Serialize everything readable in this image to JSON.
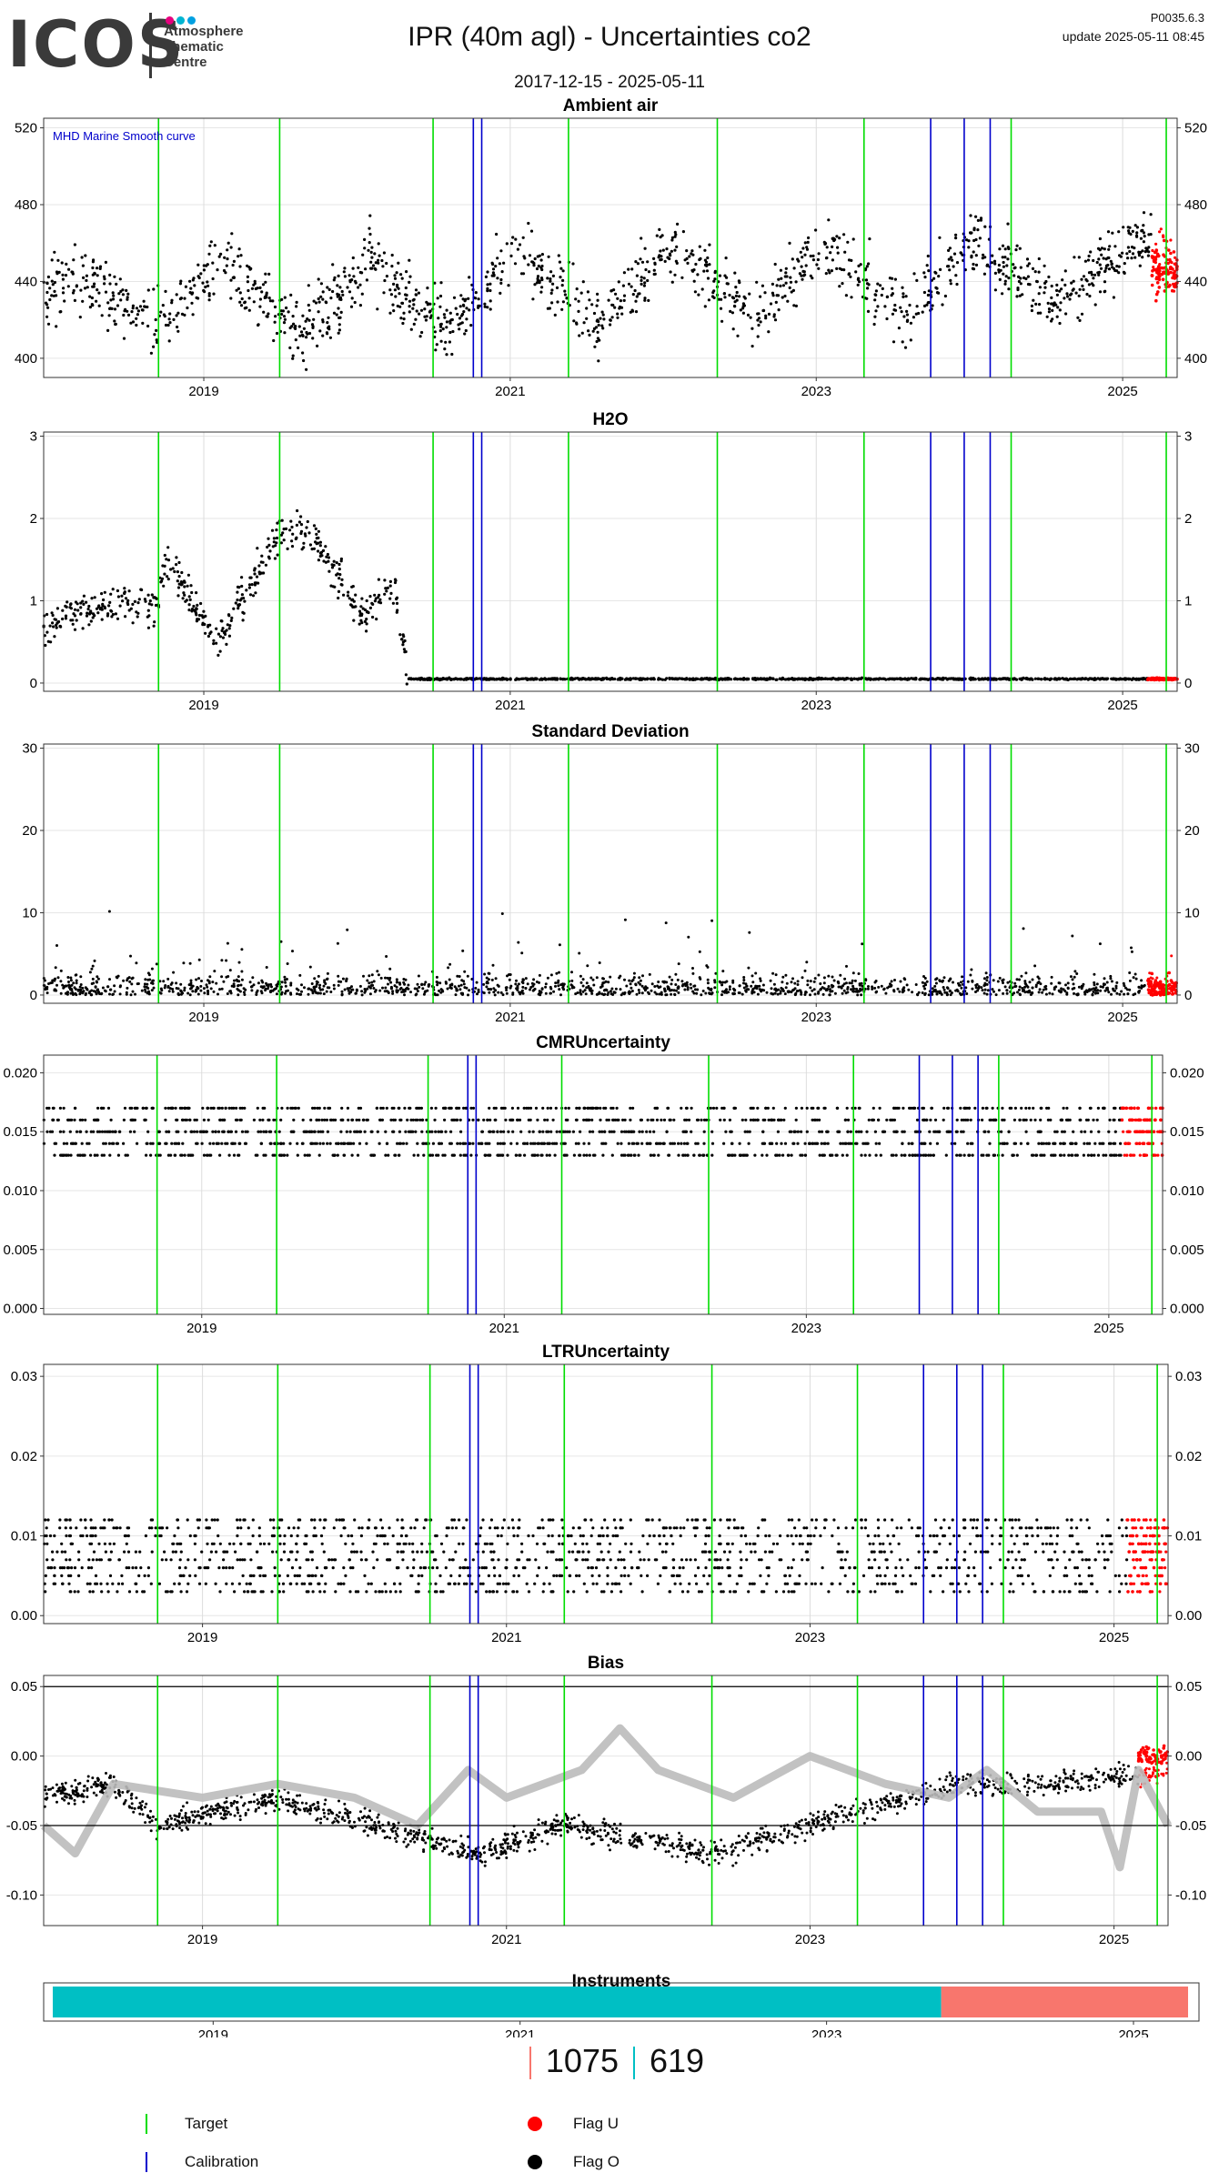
{
  "header": {
    "logo_text": "ICOS",
    "logo_sub": [
      "Atmosphere",
      "Thematic",
      "Centre"
    ],
    "logo_dot_colors": [
      "#e6007e",
      "#00b5d1",
      "#00a0e1"
    ],
    "title": "IPR  (40m agl) - Uncertainties co2",
    "date_range": "2017-12-15 - 2025-05-11",
    "version": "P0035.6.3",
    "update": "update  2025-05-11 08:45"
  },
  "colors": {
    "target": "#00dd00",
    "calibration": "#0000cc",
    "flag_o": "#000000",
    "flag_u": "#ff0000",
    "smooth": "#bbbbbb",
    "instrument_a": "#00bfc4",
    "instrument_b": "#f8766d"
  },
  "chart_data": {
    "time_range": [
      "2017-12-15",
      "2025-05-11"
    ],
    "x_ticks": [
      "2019",
      "2021",
      "2023",
      "2025"
    ],
    "target_dates": [
      "2018-09-15",
      "2019-07-01",
      "2020-07-01",
      "2021-05-20",
      "2022-05-10",
      "2023-04-25",
      "2024-04-10",
      "2025-04-15"
    ],
    "calibration_dates": [
      "2020-10-05",
      "2020-10-25",
      "2023-10-01",
      "2023-12-20",
      "2024-02-20"
    ],
    "charts": [
      {
        "id": "ambient",
        "title": "Ambient air",
        "type": "scatter",
        "ylim": [
          390,
          525
        ],
        "y_ticks": [
          "400",
          "440",
          "480",
          "520"
        ],
        "right_axis": true,
        "annotation": "MHD Marine Smooth curve",
        "anchors": [
          [
            "2017-12-15",
            435
          ],
          [
            "2018-04-01",
            440
          ],
          [
            "2018-09-01",
            418
          ],
          [
            "2019-02-15",
            448
          ],
          [
            "2019-08-15",
            412
          ],
          [
            "2020-02-01",
            450
          ],
          [
            "2020-08-01",
            415
          ],
          [
            "2021-01-15",
            455
          ],
          [
            "2021-08-01",
            418
          ],
          [
            "2022-01-15",
            458
          ],
          [
            "2022-08-15",
            422
          ],
          [
            "2023-01-15",
            458
          ],
          [
            "2023-08-01",
            425
          ],
          [
            "2024-01-15",
            462
          ],
          [
            "2024-08-01",
            430
          ],
          [
            "2025-02-01",
            462
          ],
          [
            "2025-05-11",
            445
          ]
        ],
        "noise": 24,
        "flag_u_start": "2025-03-10",
        "flag_u_center": 445
      },
      {
        "id": "h2o",
        "title": "H2O",
        "type": "scatter",
        "ylim": [
          -0.1,
          3.05
        ],
        "y_ticks": [
          "0",
          "1",
          "2",
          "3"
        ],
        "right_axis": true,
        "anchors": [
          [
            "2017-12-15",
            0.7
          ],
          [
            "2018-03-01",
            0.85
          ],
          [
            "2018-05-01",
            0.95
          ],
          [
            "2018-09-15",
            0.95
          ],
          [
            "2018-10-01",
            1.5
          ],
          [
            "2019-02-01",
            0.5
          ],
          [
            "2019-07-01",
            1.8
          ],
          [
            "2019-09-01",
            1.9
          ],
          [
            "2020-01-15",
            0.8
          ],
          [
            "2020-04-01",
            1.2
          ],
          [
            "2020-05-01",
            0.05
          ],
          [
            "2025-05-11",
            0.05
          ]
        ],
        "noise": 0.35,
        "noise_end": "2020-05-01",
        "flag_u_start": "2025-03-01",
        "flag_u_center": 0.05
      },
      {
        "id": "stdev",
        "title": "Standard Deviation",
        "type": "scatter",
        "ylim": [
          -1,
          30.5
        ],
        "y_ticks": [
          "0",
          "10",
          "20",
          "30"
        ],
        "right_axis": true,
        "base": 1.5,
        "spread": 4,
        "flag_u_start": "2025-03-01",
        "flag_u_center": 2
      },
      {
        "id": "cmr",
        "title": "CMRUncertainty",
        "type": "levels",
        "ylim": [
          -0.0005,
          0.0215
        ],
        "y_ticks": [
          "0.000",
          "0.005",
          "0.010",
          "0.015",
          "0.020"
        ],
        "right_axis": true,
        "levels": [
          0.013,
          0.014,
          0.015,
          0.016,
          0.017
        ],
        "flag_u_start": "2025-02-01"
      },
      {
        "id": "ltr",
        "title": "LTRUncertainty",
        "type": "levels",
        "ylim": [
          -0.001,
          0.0315
        ],
        "y_ticks": [
          "0.00",
          "0.01",
          "0.02",
          "0.03"
        ],
        "right_axis": true,
        "levels": [
          0.003,
          0.004,
          0.005,
          0.006,
          0.007,
          0.008,
          0.009,
          0.01,
          0.011,
          0.012
        ],
        "flag_u_start": "2025-02-01"
      },
      {
        "id": "bias",
        "title": "Bias",
        "type": "bias",
        "ylim": [
          -0.122,
          0.058
        ],
        "y_ticks": [
          "-0.10",
          "-0.05",
          "0.00",
          "0.05"
        ],
        "right_axis": true,
        "hlines": [
          0.05,
          -0.05
        ],
        "anchors": [
          [
            "2017-12-15",
            -0.03
          ],
          [
            "2018-06-01",
            -0.02
          ],
          [
            "2018-09-15",
            -0.05
          ],
          [
            "2019-07-01",
            -0.03
          ],
          [
            "2020-07-01",
            -0.06
          ],
          [
            "2020-11-01",
            -0.07
          ],
          [
            "2021-05-20",
            -0.05
          ],
          [
            "2022-05-10",
            -0.07
          ],
          [
            "2023-04-25",
            -0.04
          ],
          [
            "2024-01-01",
            -0.02
          ],
          [
            "2024-08-01",
            -0.02
          ],
          [
            "2025-05-11",
            -0.01
          ]
        ],
        "smooth": [
          [
            "2017-12-15",
            -0.05
          ],
          [
            "2018-03-01",
            -0.07
          ],
          [
            "2018-06-01",
            -0.02
          ],
          [
            "2019-01-01",
            -0.03
          ],
          [
            "2019-07-01",
            -0.02
          ],
          [
            "2020-01-01",
            -0.03
          ],
          [
            "2020-06-01",
            -0.05
          ],
          [
            "2020-10-01",
            -0.01
          ],
          [
            "2021-01-01",
            -0.03
          ],
          [
            "2021-07-01",
            -0.01
          ],
          [
            "2021-10-01",
            0.02
          ],
          [
            "2022-01-01",
            -0.01
          ],
          [
            "2022-07-01",
            -0.03
          ],
          [
            "2023-01-01",
            0.0
          ],
          [
            "2023-07-01",
            -0.02
          ],
          [
            "2023-12-01",
            -0.03
          ],
          [
            "2024-03-01",
            -0.01
          ],
          [
            "2024-07-01",
            -0.04
          ],
          [
            "2024-12-01",
            -0.04
          ],
          [
            "2025-01-15",
            -0.08
          ],
          [
            "2025-03-01",
            -0.01
          ],
          [
            "2025-05-11",
            -0.05
          ]
        ],
        "flag_u_start": "2025-03-01",
        "flag_u_center": 0.0
      }
    ],
    "instruments": {
      "title": "Instruments",
      "segments": [
        {
          "from": "2017-12-15",
          "to": "2023-10-01",
          "color": "#00bfc4"
        },
        {
          "from": "2023-10-01",
          "to": "2025-05-11",
          "color": "#f8766d"
        }
      ]
    }
  },
  "counts": {
    "first": "1075",
    "second": "619"
  },
  "legend": {
    "target": "Target",
    "calibration": "Calibration",
    "flag_u": "Flag U",
    "flag_o": "Flag O"
  }
}
